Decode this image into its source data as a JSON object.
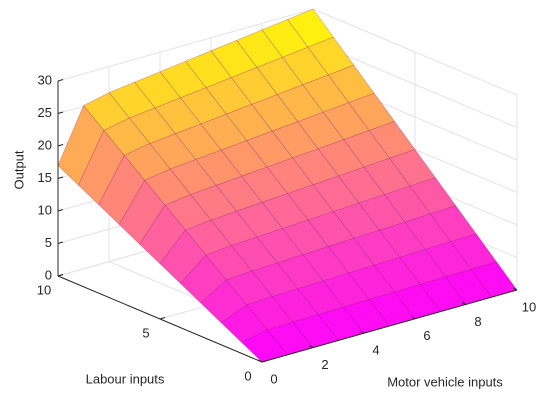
{
  "chart_data": {
    "type": "surface",
    "xlabel": "Motor vehicle inputs",
    "ylabel": "Labour inputs",
    "zlabel": "Output",
    "x": [
      0,
      1,
      2,
      3,
      4,
      5,
      6,
      7,
      8,
      9,
      10
    ],
    "y": [
      0,
      1,
      2,
      3,
      4,
      5,
      6,
      7,
      8,
      9,
      10
    ],
    "z": [
      [
        0,
        0,
        0,
        0,
        0,
        0,
        0,
        0,
        0,
        0,
        0
      ],
      [
        1.7,
        2.51,
        2.6,
        2.65,
        2.7,
        2.75,
        2.8,
        2.85,
        2.9,
        2.95,
        3
      ],
      [
        3.4,
        5.02,
        5.2,
        5.3,
        5.4,
        5.5,
        5.6,
        5.7,
        5.8,
        5.9,
        6
      ],
      [
        5.1,
        7.53,
        7.8,
        7.95,
        8.1,
        8.25,
        8.4,
        8.55,
        8.7,
        8.85,
        9
      ],
      [
        6.8,
        10.04,
        10.4,
        10.6,
        10.8,
        11,
        11.2,
        11.4,
        11.6,
        11.8,
        12
      ],
      [
        8.5,
        12.55,
        13,
        13.25,
        13.5,
        13.75,
        14,
        14.25,
        14.5,
        14.75,
        15
      ],
      [
        10.2,
        15.06,
        15.6,
        15.9,
        16.2,
        16.5,
        16.8,
        17.1,
        17.4,
        17.7,
        18
      ],
      [
        11.9,
        17.57,
        18.2,
        18.55,
        18.9,
        19.25,
        19.6,
        19.95,
        20.3,
        20.65,
        21
      ],
      [
        13.6,
        20.08,
        20.8,
        21.2,
        21.6,
        22,
        22.4,
        22.8,
        23.2,
        23.6,
        24
      ],
      [
        15.3,
        22.59,
        23.4,
        23.85,
        24.3,
        24.75,
        25.2,
        25.65,
        26.1,
        26.55,
        27
      ],
      [
        17,
        25.1,
        26,
        26.5,
        27,
        27.5,
        28,
        28.5,
        29,
        29.5,
        30
      ]
    ],
    "xlim": [
      0,
      10
    ],
    "ylim": [
      0,
      10
    ],
    "zlim": [
      0,
      30
    ],
    "xticks": [
      0,
      2,
      4,
      6,
      8,
      10
    ],
    "yticks": [
      0,
      5,
      10
    ],
    "zticks": [
      0,
      5,
      10,
      15,
      20,
      25,
      30
    ],
    "colormap": "spring",
    "grid": true
  }
}
